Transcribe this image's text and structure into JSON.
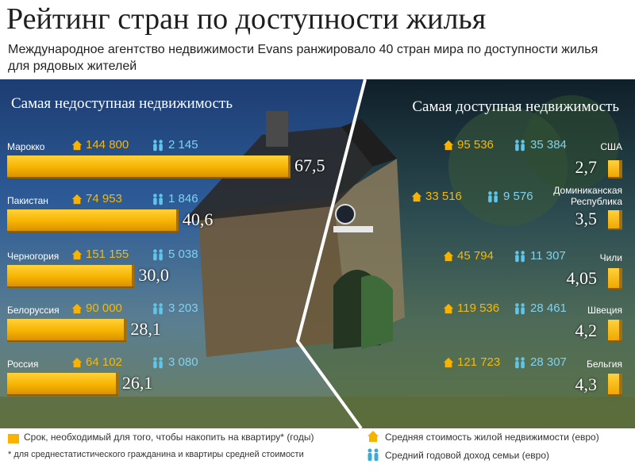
{
  "title": "Рейтинг стран по доступности жилья",
  "subtitle": "Международное агентство недвижимости Evans ранжировало 40 стран мира по доступности жилья для рядовых жителей",
  "left_heading": "Самая недоступная недвижимость",
  "right_heading": "Самая доступная недвижимость",
  "colors": {
    "bar": "#f7b300",
    "price": "#f7b900",
    "income": "#7fd2f0"
  },
  "icons": {
    "price": "house-icon",
    "income": "family-icon"
  },
  "legend": {
    "years": "Срок, необходимый для того, чтобы накопить на квартиру* (годы)",
    "note": "* для среднестатистического гражданина и квартиры средней стоимости",
    "price": "Средняя стоимость жилой недвижимости (евро)",
    "income": "Средний годовой доход семьи (евро)"
  },
  "chart_data": [
    {
      "type": "bar",
      "title": "Самая недоступная недвижимость",
      "categories": [
        "Марокко",
        "Пакистан",
        "Черногория",
        "Белоруссия",
        "Россия"
      ],
      "values": [
        67.5,
        40.6,
        30.0,
        28.1,
        26.1
      ],
      "value_labels": [
        "67,5",
        "40,6",
        "30,0",
        "28,1",
        "26,1"
      ],
      "price_labels": [
        "144 800",
        "74 953",
        "151 155",
        "90 000",
        "64 102"
      ],
      "income_labels": [
        "2 145",
        "1 846",
        "5 038",
        "3 203",
        "3 080"
      ]
    },
    {
      "type": "bar",
      "title": "Самая доступная недвижимость",
      "categories": [
        "США",
        "Доминиканская Республика",
        "Чили",
        "Швеция",
        "Бельгия"
      ],
      "values": [
        2.7,
        3.5,
        4.05,
        4.2,
        4.3
      ],
      "value_labels": [
        "2,7",
        "3,5",
        "4,05",
        "4,2",
        "4,3"
      ],
      "price_labels": [
        "95 536",
        "33 516",
        "45 794",
        "119 536",
        "121 723"
      ],
      "income_labels": [
        "35 384",
        "9 576",
        "11 307",
        "28 461",
        "28 307"
      ]
    }
  ]
}
